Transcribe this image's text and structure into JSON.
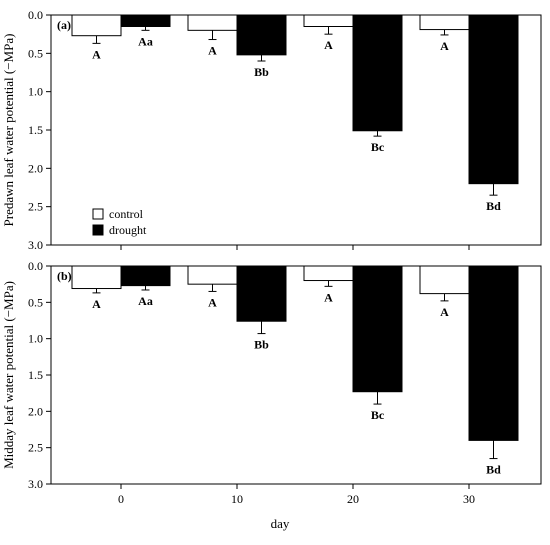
{
  "chart_data": [
    {
      "type": "bar",
      "panel_label": "(a)",
      "ylabel": "Predawn leaf water potential (−MPa)",
      "xlabel": "",
      "ylim": [
        0,
        3.0
      ],
      "y_inverted": true,
      "y_ticks": [
        "0.0",
        "0.5",
        "1.0",
        "1.5",
        "2.0",
        "2.5",
        "3.0"
      ],
      "categories": [
        "0",
        "10",
        "20",
        "30"
      ],
      "series": [
        {
          "name": "control",
          "color": "#ffffff",
          "values": [
            0.27,
            0.2,
            0.15,
            0.19
          ],
          "errors": [
            0.1,
            0.12,
            0.1,
            0.07
          ],
          "labels": [
            "A",
            "A",
            "A",
            "A"
          ]
        },
        {
          "name": "drought",
          "color": "#000000",
          "values": [
            0.15,
            0.52,
            1.51,
            2.2
          ],
          "errors": [
            0.05,
            0.08,
            0.07,
            0.15
          ],
          "labels": [
            "Aa",
            "Bb",
            "Bc",
            "Bd"
          ]
        }
      ],
      "legend_position": "bottom-left"
    },
    {
      "type": "bar",
      "panel_label": "(b)",
      "ylabel": "Midday leaf water potential (−MPa)",
      "xlabel": "day",
      "ylim": [
        0,
        3.0
      ],
      "y_inverted": true,
      "y_ticks": [
        "0.0",
        "0.5",
        "1.0",
        "1.5",
        "2.0",
        "2.5",
        "3.0"
      ],
      "categories": [
        "0",
        "10",
        "20",
        "30"
      ],
      "series": [
        {
          "name": "control",
          "color": "#ffffff",
          "values": [
            0.31,
            0.25,
            0.2,
            0.38
          ],
          "errors": [
            0.06,
            0.1,
            0.08,
            0.1
          ],
          "labels": [
            "A",
            "A",
            "A",
            "A"
          ]
        },
        {
          "name": "drought",
          "color": "#000000",
          "values": [
            0.27,
            0.76,
            1.73,
            2.4
          ],
          "errors": [
            0.06,
            0.17,
            0.17,
            0.25
          ],
          "labels": [
            "Aa",
            "Bb",
            "Bc",
            "Bd"
          ]
        }
      ]
    }
  ]
}
